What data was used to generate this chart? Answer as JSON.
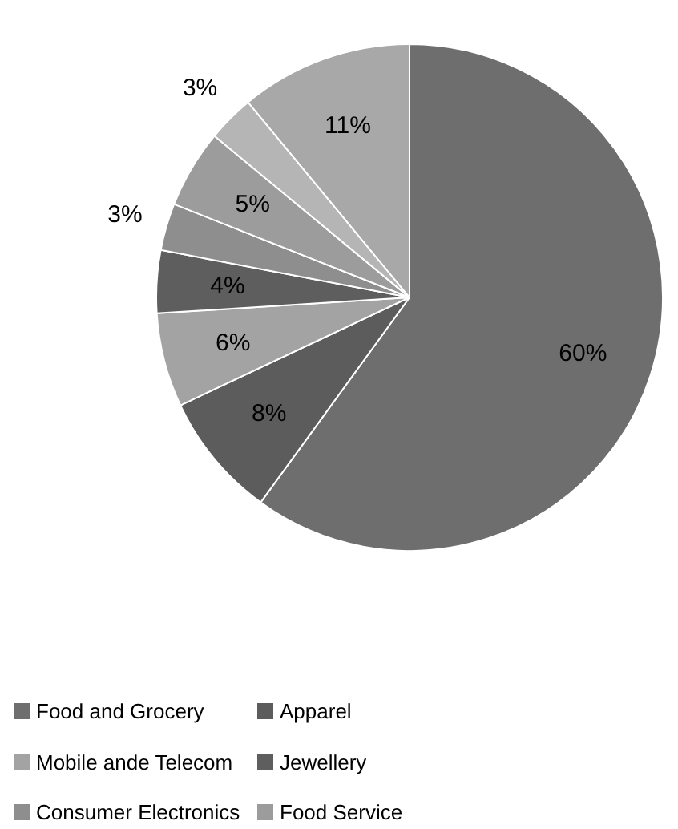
{
  "chart_data": {
    "type": "pie",
    "categories": [
      "Food and Grocery",
      "Apparel",
      "Mobile ande Telecom",
      "Jewellery",
      "Consumer Electronics",
      "Food Service",
      null,
      null
    ],
    "values": [
      60,
      8,
      6,
      4,
      3,
      5,
      3,
      11
    ],
    "value_labels": [
      "60%",
      "8%",
      "6%",
      "4%",
      "3%",
      "5%",
      "3%",
      "11%"
    ],
    "colors": [
      "#6e6e6e",
      "#5c5c5c",
      "#a3a3a3",
      "#5e5e5e",
      "#8e8e8e",
      "#9c9c9c",
      "#b5b5b5",
      "#a8a8a8"
    ],
    "legend": "bottom"
  }
}
